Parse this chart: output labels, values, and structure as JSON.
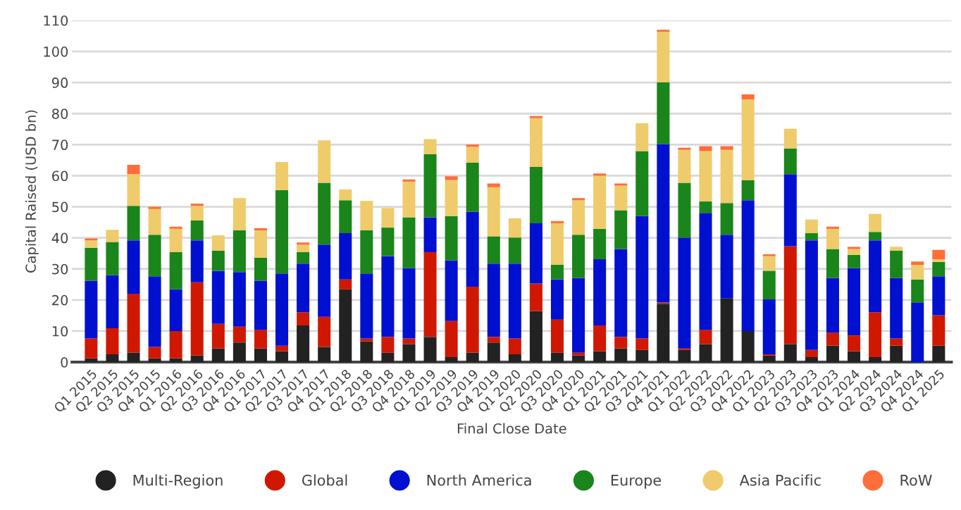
{
  "chart_data": {
    "type": "bar",
    "stacked": true,
    "xlabel": "Final Close Date",
    "ylabel": "Capital Raised (USD bn)",
    "categories": [
      "Q1 2015",
      "Q2 2015",
      "Q3 2015",
      "Q4 2015",
      "Q1 2016",
      "Q2 2016",
      "Q3 2016",
      "Q4 2016",
      "Q1 2017",
      "Q2 2017",
      "Q3 2017",
      "Q4 2017",
      "Q1 2018",
      "Q2 2018",
      "Q3 2018",
      "Q4 2018",
      "Q1 2019",
      "Q2 2019",
      "Q3 2019",
      "Q4 2019",
      "Q1 2020",
      "Q2 2020",
      "Q3 2020",
      "Q4 2020",
      "Q1 2021",
      "Q2 2021",
      "Q3 2021",
      "Q4 2021",
      "Q1 2022",
      "Q2 2022",
      "Q3 2022",
      "Q4 2022",
      "Q1 2023",
      "Q2 2023",
      "Q3 2023",
      "Q4 2023",
      "Q1 2024",
      "Q2 2024",
      "Q3 2024",
      "Q4 2024",
      "Q1 2025"
    ],
    "series": [
      {
        "name": "Multi-Region",
        "color": "#222222",
        "values": [
          1.2,
          2.5,
          3.0,
          1.2,
          1.2,
          2.1,
          4.4,
          6.3,
          4.4,
          3.5,
          11.8,
          4.9,
          23.4,
          6.7,
          3.0,
          5.8,
          8.1,
          1.6,
          3.0,
          6.3,
          2.5,
          16.4,
          3.0,
          2.1,
          3.5,
          4.4,
          3.9,
          18.8,
          3.9,
          5.8,
          20.6,
          10.0,
          2.1,
          5.8,
          1.6,
          5.3,
          3.5,
          1.6,
          5.3,
          0,
          5.3
        ]
      },
      {
        "name": "Global",
        "color": "#d01800",
        "values": [
          6.4,
          8.4,
          19.0,
          3.7,
          8.8,
          23.6,
          7.9,
          5.1,
          6.0,
          1.8,
          4.2,
          9.7,
          3.2,
          0.9,
          5.1,
          1.8,
          27.3,
          11.6,
          21.3,
          1.8,
          5.1,
          8.9,
          10.7,
          0.9,
          8.3,
          3.7,
          3.7,
          0.4,
          0.5,
          4.6,
          0,
          0,
          0.4,
          31.5,
          2.3,
          4.2,
          5.1,
          14.4,
          2.3,
          0,
          9.8
        ]
      },
      {
        "name": "North America",
        "color": "#0010d0",
        "values": [
          18.6,
          17.1,
          17.2,
          22.7,
          13.4,
          13.5,
          17.1,
          17.6,
          15.8,
          23.2,
          15.7,
          23.2,
          14.9,
          20.9,
          26.0,
          22.7,
          11.2,
          19.5,
          24.1,
          23.6,
          24.1,
          19.4,
          12.9,
          24.1,
          21.3,
          28.3,
          39.4,
          51.0,
          35.7,
          37.6,
          20.4,
          42.1,
          17.7,
          23.2,
          35.3,
          17.6,
          21.7,
          23.2,
          19.5,
          19.2,
          12.5
        ]
      },
      {
        "name": "Europe",
        "color": "#1a851a",
        "values": [
          10.6,
          10.7,
          11.1,
          13.4,
          12.0,
          6.4,
          6.5,
          13.4,
          7.4,
          26.9,
          3.7,
          19.9,
          10.6,
          13.9,
          9.2,
          16.3,
          20.3,
          14.3,
          15.8,
          8.8,
          8.4,
          18.1,
          4.7,
          13.9,
          9.8,
          12.5,
          20.9,
          19.9,
          17.6,
          3.7,
          10.2,
          6.5,
          9.2,
          8.3,
          2.3,
          9.3,
          4.2,
          2.7,
          8.8,
          7.4,
          4.6
        ]
      },
      {
        "name": "Asia Pacific",
        "color": "#efcb6b",
        "values": [
          2.4,
          3.9,
          10.2,
          8.3,
          7.5,
          4.7,
          4.9,
          10.4,
          8.8,
          9.0,
          2.4,
          13.7,
          3.5,
          9.5,
          6.3,
          11.5,
          4.9,
          11.6,
          5.1,
          15.8,
          6.2,
          15.7,
          13.4,
          11.1,
          17.1,
          7.9,
          9.0,
          16.2,
          10.6,
          16.2,
          17.1,
          26.0,
          4.7,
          6.3,
          4.4,
          6.5,
          1.9,
          5.8,
          1.2,
          4.7,
          0.9
        ]
      },
      {
        "name": "RoW",
        "color": "#ff6d3a",
        "values": [
          0.6,
          0,
          3.0,
          0.7,
          0.7,
          0.7,
          0,
          0,
          0.7,
          0,
          0.7,
          0,
          0,
          0,
          0,
          0.7,
          0,
          1.2,
          0.7,
          1.2,
          0,
          0.7,
          0.7,
          0.7,
          0.7,
          0.7,
          0,
          0.7,
          0.7,
          1.6,
          1.2,
          1.6,
          0.6,
          0,
          0,
          0.7,
          0.7,
          0,
          0,
          1.1,
          3.0
        ]
      }
    ],
    "ylim": [
      0,
      110
    ],
    "yticks": [
      0,
      10,
      20,
      30,
      40,
      50,
      60,
      70,
      80,
      90,
      100,
      110
    ],
    "grid": "y",
    "legend": "bottom",
    "marker": "circle"
  }
}
